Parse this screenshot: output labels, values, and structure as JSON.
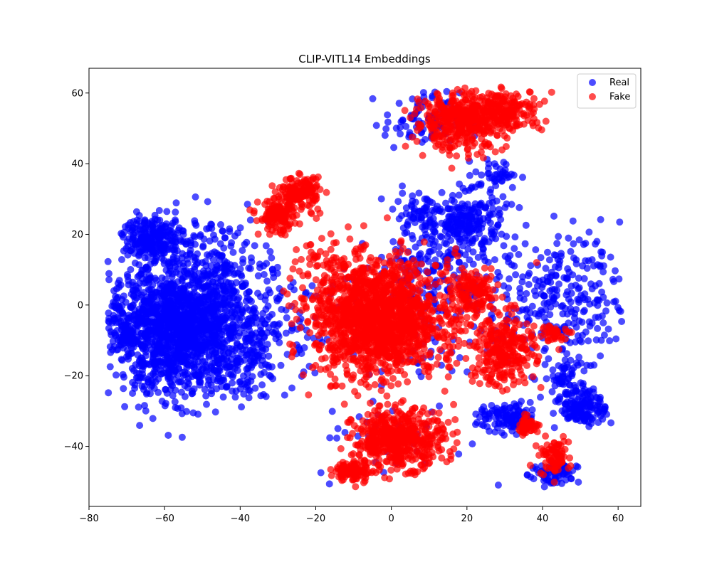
{
  "chart_data": {
    "type": "scatter",
    "title": "CLIP-VITL14 Embeddings",
    "xlabel": "",
    "ylabel": "",
    "xlim": [
      -80,
      66
    ],
    "ylim": [
      -57,
      67
    ],
    "xticks": [
      -80,
      -60,
      -40,
      -20,
      0,
      20,
      40,
      60
    ],
    "yticks": [
      -40,
      -20,
      0,
      20,
      40,
      60
    ],
    "grid": false,
    "legend_position": "top-right",
    "series": [
      {
        "name": "Real",
        "color": "#0000ff",
        "clusters": [
          {
            "cx": -56,
            "cy": -7,
            "sx": 9,
            "sy": 9,
            "n": 1500
          },
          {
            "cx": -63,
            "cy": 19,
            "sx": 4,
            "sy": 3,
            "n": 220
          },
          {
            "cx": -48,
            "cy": 10,
            "sx": 8,
            "sy": 8,
            "n": 200
          },
          {
            "cx": -40,
            "cy": -12,
            "sx": 6,
            "sy": 7,
            "n": 160
          },
          {
            "cx": -70,
            "cy": -6,
            "sx": 3,
            "sy": 5,
            "n": 100
          },
          {
            "cx": 20,
            "cy": 24,
            "sx": 5,
            "sy": 4,
            "n": 200
          },
          {
            "cx": 12,
            "cy": 10,
            "sx": 8,
            "sy": 7,
            "n": 150
          },
          {
            "cx": 7,
            "cy": 26,
            "sx": 4,
            "sy": 3,
            "n": 60
          },
          {
            "cx": 45,
            "cy": 2,
            "sx": 8,
            "sy": 9,
            "n": 260
          },
          {
            "cx": 51,
            "cy": -29,
            "sx": 3,
            "sy": 2.5,
            "n": 140
          },
          {
            "cx": 46,
            "cy": -21,
            "sx": 3,
            "sy": 3,
            "n": 60
          },
          {
            "cx": 31,
            "cy": -32,
            "sx": 4,
            "sy": 2,
            "n": 120
          },
          {
            "cx": 43,
            "cy": -48,
            "sx": 3,
            "sy": 2,
            "n": 70
          },
          {
            "cx": 8,
            "cy": 52,
            "sx": 5,
            "sy": 4,
            "n": 90
          },
          {
            "cx": 28,
            "cy": 37,
            "sx": 3,
            "sy": 2,
            "n": 40
          },
          {
            "cx": 2,
            "cy": -5,
            "sx": 14,
            "sy": 14,
            "n": 80
          },
          {
            "cx": -30,
            "cy": 0,
            "sx": 6,
            "sy": 10,
            "n": 60
          },
          {
            "cx": 0,
            "cy": -38,
            "sx": 10,
            "sy": 6,
            "n": 40
          },
          {
            "cx": 22,
            "cy": 10,
            "sx": 14,
            "sy": 14,
            "n": 60
          }
        ]
      },
      {
        "name": "Fake",
        "color": "#ff0000",
        "clusters": [
          {
            "cx": -4,
            "cy": -4,
            "sx": 8,
            "sy": 8,
            "n": 1500
          },
          {
            "cx": 2,
            "cy": -38,
            "sx": 6,
            "sy": 4,
            "n": 500
          },
          {
            "cx": -10,
            "cy": -47,
            "sx": 2.5,
            "sy": 1.5,
            "n": 100
          },
          {
            "cx": 18,
            "cy": 52,
            "sx": 6,
            "sy": 4,
            "n": 400
          },
          {
            "cx": 30,
            "cy": 55,
            "sx": 5,
            "sy": 3,
            "n": 200
          },
          {
            "cx": -24,
            "cy": 32,
            "sx": 2.5,
            "sy": 2,
            "n": 140
          },
          {
            "cx": -30,
            "cy": 25,
            "sx": 2.5,
            "sy": 2.5,
            "n": 140
          },
          {
            "cx": 30,
            "cy": -13,
            "sx": 4,
            "sy": 5,
            "n": 260
          },
          {
            "cx": 22,
            "cy": 3,
            "sx": 3,
            "sy": 3,
            "n": 120
          },
          {
            "cx": 36,
            "cy": -34,
            "sx": 1.5,
            "sy": 1.2,
            "n": 50
          },
          {
            "cx": 43,
            "cy": -43,
            "sx": 2,
            "sy": 2.5,
            "n": 80
          },
          {
            "cx": 43,
            "cy": -8,
            "sx": 2.5,
            "sy": 1.2,
            "n": 40
          },
          {
            "cx": 12,
            "cy": 0,
            "sx": 8,
            "sy": 10,
            "n": 120
          },
          {
            "cx": -18,
            "cy": 8,
            "sx": 5,
            "sy": 8,
            "n": 80
          }
        ]
      }
    ]
  }
}
